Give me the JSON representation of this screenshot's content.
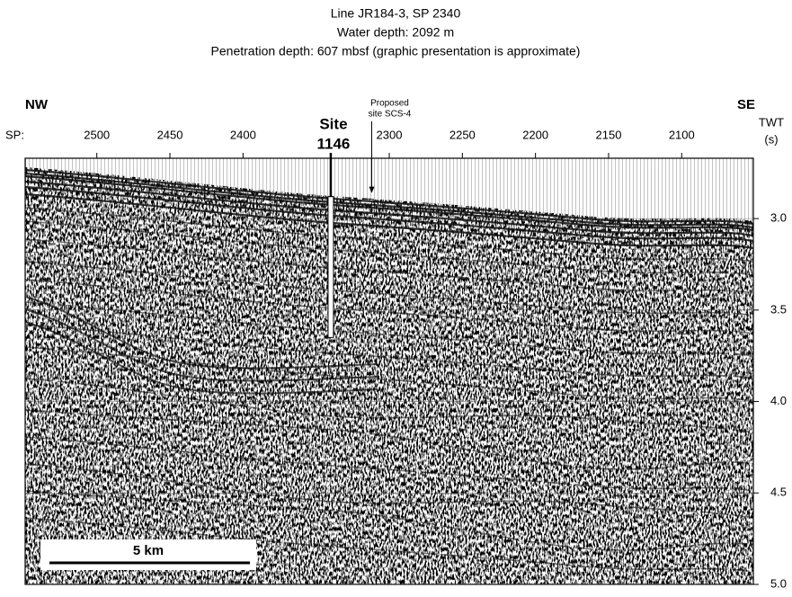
{
  "chart_data": {
    "type": "seismic",
    "title": [
      "Line JR184-3, SP 2340",
      "Water depth: 2092 m",
      "Penetration depth: 607 mbsf (graphic presentation is approximate)"
    ],
    "left_label": "NW",
    "right_label": "SE",
    "x_axis_label": "SP:",
    "y_axis_label": [
      "TWT",
      "(s)"
    ],
    "xlim": [
      2549,
      2051
    ],
    "xticks": [
      2500,
      2450,
      2400,
      2300,
      2250,
      2200,
      2150,
      2100
    ],
    "ylim": [
      2.67,
      5.0
    ],
    "yticks": [
      {
        "value": 3,
        "label": "3.0"
      },
      3.5,
      {
        "value": 4,
        "label": "4.0"
      },
      4.5,
      {
        "value": 5,
        "label": "5.0"
      }
    ],
    "grid": true,
    "site": {
      "label": [
        "Site",
        "1146"
      ],
      "sp": 2340,
      "twt_top": 2.88,
      "twt_bottom": 3.65
    },
    "proposed_site": {
      "label": [
        "Proposed",
        "site SCS-4"
      ],
      "sp": 2312,
      "twt": 2.86
    },
    "scale_bar": "5 km"
  }
}
